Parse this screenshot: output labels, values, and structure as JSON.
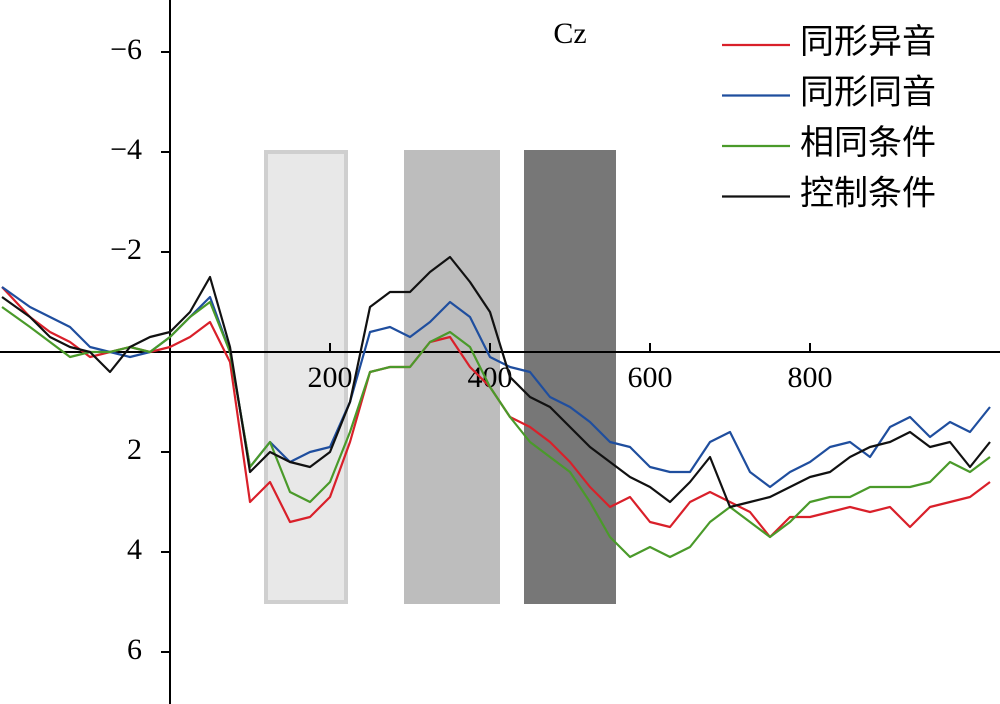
{
  "chart_data": {
    "type": "line",
    "title": "Cz",
    "x": [
      -210,
      -175,
      -150,
      -125,
      -100,
      -75,
      -50,
      -25,
      0,
      25,
      50,
      75,
      100,
      125,
      150,
      175,
      200,
      225,
      250,
      275,
      300,
      325,
      350,
      375,
      400,
      425,
      450,
      475,
      500,
      525,
      550,
      575,
      600,
      625,
      650,
      675,
      700,
      725,
      750,
      775,
      800,
      825,
      850,
      875,
      900,
      925,
      950,
      975,
      1000,
      1025
    ],
    "series": [
      {
        "name": "同形异音",
        "color": "#d9202a",
        "values": [
          -1.3,
          -0.7,
          -0.4,
          -0.2,
          0.1,
          0,
          -0.1,
          0,
          -0.1,
          -0.3,
          -0.6,
          0.2,
          3.0,
          2.6,
          3.4,
          3.3,
          2.9,
          1.8,
          0.4,
          0.3,
          0.3,
          -0.2,
          -0.3,
          0.3,
          0.7,
          1.3,
          1.5,
          1.8,
          2.2,
          2.7,
          3.1,
          2.9,
          3.4,
          3.5,
          3.0,
          2.8,
          3.0,
          3.2,
          3.7,
          3.3,
          3.3,
          3.2,
          3.1,
          3.2,
          3.1,
          3.5,
          3.1,
          3.0,
          2.9,
          2.6
        ]
      },
      {
        "name": "同形同音",
        "color": "#1f4e9e",
        "values": [
          -1.3,
          -0.9,
          -0.7,
          -0.5,
          -0.1,
          0,
          0.1,
          0,
          -0.3,
          -0.7,
          -1.1,
          0,
          2.3,
          1.8,
          2.2,
          2.0,
          1.9,
          1.0,
          -0.4,
          -0.5,
          -0.3,
          -0.6,
          -1.0,
          -0.7,
          0.1,
          0.3,
          0.4,
          0.9,
          1.1,
          1.4,
          1.8,
          1.9,
          2.3,
          2.4,
          2.4,
          1.8,
          1.6,
          2.4,
          2.7,
          2.4,
          2.2,
          1.9,
          1.8,
          2.1,
          1.5,
          1.3,
          1.7,
          1.4,
          1.6,
          1.1
        ]
      },
      {
        "name": "相同条件",
        "color": "#4a9a2a",
        "values": [
          -0.9,
          -0.5,
          -0.2,
          0.1,
          0,
          0,
          -0.1,
          0,
          -0.3,
          -0.7,
          -1.0,
          0,
          2.3,
          1.8,
          2.8,
          3.0,
          2.6,
          1.6,
          0.4,
          0.3,
          0.3,
          -0.2,
          -0.4,
          -0.1,
          0.7,
          1.3,
          1.8,
          2.1,
          2.4,
          3.0,
          3.7,
          4.1,
          3.9,
          4.1,
          3.9,
          3.4,
          3.1,
          3.4,
          3.7,
          3.4,
          3.0,
          2.9,
          2.9,
          2.7,
          2.7,
          2.7,
          2.6,
          2.2,
          2.4,
          2.1
        ]
      },
      {
        "name": "控制条件",
        "color": "#111111",
        "values": [
          -1.1,
          -0.7,
          -0.3,
          -0.1,
          0,
          0.4,
          -0.1,
          -0.3,
          -0.4,
          -0.8,
          -1.5,
          -0.1,
          2.4,
          2.0,
          2.2,
          2.3,
          2.0,
          1.0,
          -0.9,
          -1.2,
          -1.2,
          -1.6,
          -1.9,
          -1.4,
          -0.8,
          0.5,
          0.9,
          1.1,
          1.5,
          1.9,
          2.2,
          2.5,
          2.7,
          3.0,
          2.6,
          2.1,
          3.1,
          3.0,
          2.9,
          2.7,
          2.5,
          2.4,
          2.1,
          1.9,
          1.8,
          1.6,
          1.9,
          1.8,
          2.3,
          1.8
        ]
      }
    ],
    "windows": [
      {
        "xlim": [
          120,
          220
        ],
        "ylim": [
          -4,
          5
        ],
        "color": "#e8e8e8",
        "border": "#cfcfcf"
      },
      {
        "xlim": [
          295,
          410
        ],
        "ylim": [
          -4,
          5
        ],
        "color": "#bdbdbd",
        "border": "#bdbdbd"
      },
      {
        "xlim": [
          445,
          555
        ],
        "ylim": [
          -4,
          5
        ],
        "color": "#777777",
        "border": "#777777"
      }
    ],
    "xlim": [
      -210,
      1035
    ],
    "xticks": [
      200,
      400,
      600,
      800
    ],
    "ylim": [
      -7,
      7
    ],
    "y_inverted": true,
    "yticks": [
      {
        "value": -6,
        "label": "−6"
      },
      {
        "value": -4,
        "label": "−4"
      },
      {
        "value": -2,
        "label": "−2"
      },
      2,
      4,
      6
    ],
    "legend": "upper right"
  }
}
